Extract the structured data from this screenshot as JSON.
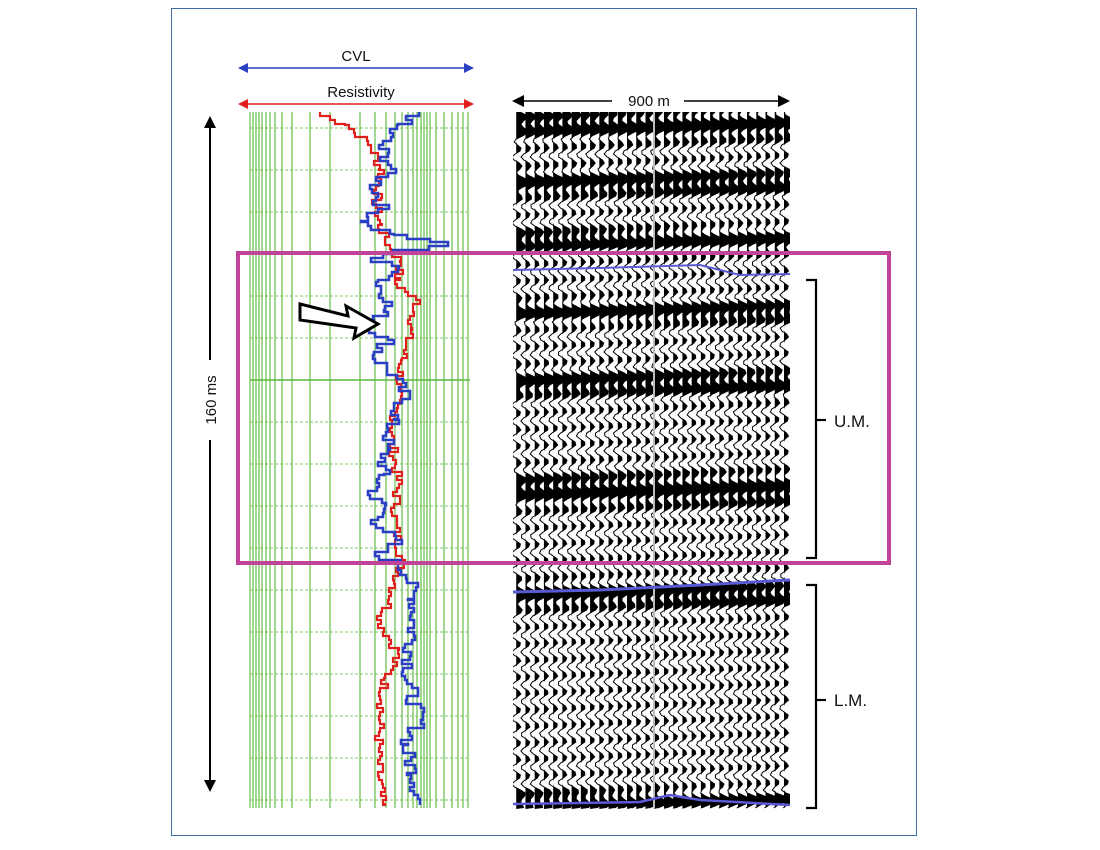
{
  "labels": {
    "cvl": "CVL",
    "resistivity": "Resistivity",
    "width_scale": "900 m",
    "time_scale": "160 ms",
    "upper_member": "U.M.",
    "lower_member": "L.M."
  },
  "colors": {
    "frame": "#3f6fa6",
    "cvl_curve": "#2b3fc4",
    "resistivity_curve": "#e0201c",
    "grid": "#58b83a",
    "highlight_box": "#c0449a",
    "horizon": "#5a5ad6",
    "wiggle": "#000000"
  },
  "icons": {
    "pointer": "hollow-arrow-icon"
  }
}
